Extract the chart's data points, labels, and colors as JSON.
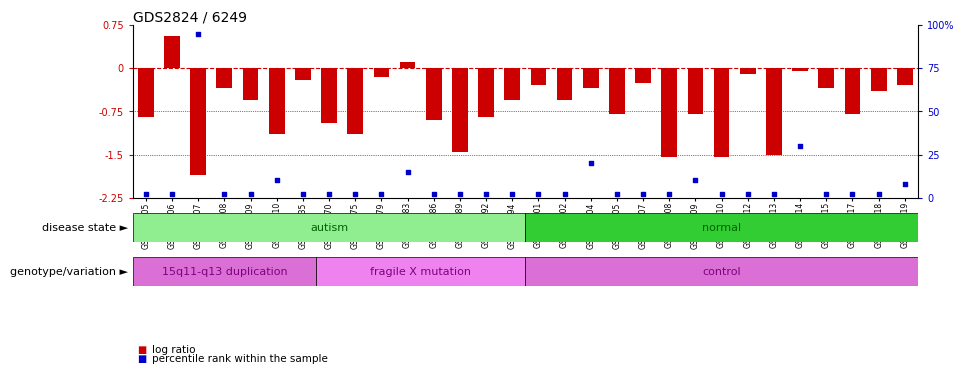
{
  "title": "GDS2824 / 6249",
  "samples": [
    "GSM176505",
    "GSM176506",
    "GSM176507",
    "GSM176508",
    "GSM176509",
    "GSM176510",
    "GSM176535",
    "GSM176570",
    "GSM176575",
    "GSM176579",
    "GSM176583",
    "GSM176586",
    "GSM176589",
    "GSM176592",
    "GSM176594",
    "GSM176601",
    "GSM176602",
    "GSM176604",
    "GSM176605",
    "GSM176607",
    "GSM176608",
    "GSM176609",
    "GSM176610",
    "GSM176612",
    "GSM176613",
    "GSM176614",
    "GSM176615",
    "GSM176617",
    "GSM176618",
    "GSM176619"
  ],
  "log_ratio": [
    -0.85,
    0.55,
    -1.85,
    -0.35,
    -0.55,
    -1.15,
    -0.2,
    -0.95,
    -1.15,
    -0.15,
    0.1,
    -0.9,
    -1.45,
    -0.85,
    -0.55,
    -0.3,
    -0.55,
    -0.35,
    -0.8,
    -0.25,
    -1.55,
    -0.8,
    -1.55,
    -0.1,
    -1.5,
    -0.05,
    -0.35,
    -0.8,
    -0.4,
    -0.3
  ],
  "percentile": [
    2,
    2,
    95,
    2,
    2,
    10,
    2,
    2,
    2,
    2,
    15,
    2,
    2,
    2,
    2,
    2,
    2,
    20,
    2,
    2,
    2,
    10,
    2,
    2,
    2,
    30,
    2,
    2,
    2,
    8
  ],
  "disease_state_groups": [
    {
      "label": "autism",
      "start": 0,
      "end": 15,
      "color": "#90EE90"
    },
    {
      "label": "normal",
      "start": 15,
      "end": 30,
      "color": "#32CD32"
    }
  ],
  "genotype_groups": [
    {
      "label": "15q11-q13 duplication",
      "start": 0,
      "end": 7,
      "color": "#DA70D6"
    },
    {
      "label": "fragile X mutation",
      "start": 7,
      "end": 15,
      "color": "#EE82EE"
    },
    {
      "label": "control",
      "start": 15,
      "end": 30,
      "color": "#DA70D6"
    }
  ],
  "ylim_left": [
    -2.25,
    0.75
  ],
  "ylim_right": [
    0,
    100
  ],
  "bar_color": "#CC0000",
  "dot_color": "#0000CC",
  "ref_line_color": "#CC0000",
  "bg_color": "#ffffff",
  "title_fontsize": 10,
  "label_fontsize": 7.5,
  "tick_fontsize": 7,
  "annotation_label_fontsize": 8
}
